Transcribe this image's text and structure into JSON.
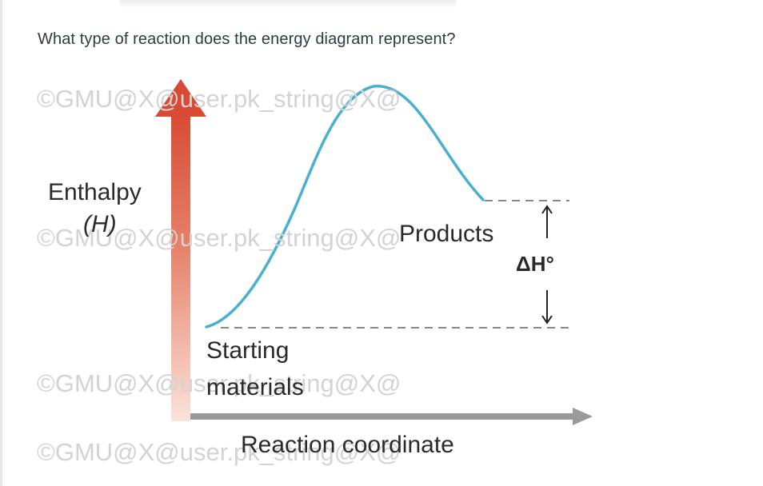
{
  "question": {
    "text": "What type of reaction does the energy diagram represent?"
  },
  "diagram": {
    "y_axis_label": "Enthalpy",
    "y_axis_symbol": "(H)",
    "x_axis_label": "Reaction coordinate",
    "products_label": "Products",
    "starting_label_line1": "Starting",
    "starting_label_line2": "materials",
    "delta_h_label": "ΔH°",
    "curve_color": "#4ab0d0",
    "arrow_color_top": "#d94a35",
    "arrow_color_bottom": "#f8d8cc",
    "x_axis_color": "#9a9a9a"
  },
  "watermarks": [
    "©GMU@X@user.pk_string@X@",
    "©GMU@X@user.pk_string@X@",
    "©GMU@X@user.pk_string@X@",
    "©GMU@X@user.pk_string@X@"
  ]
}
